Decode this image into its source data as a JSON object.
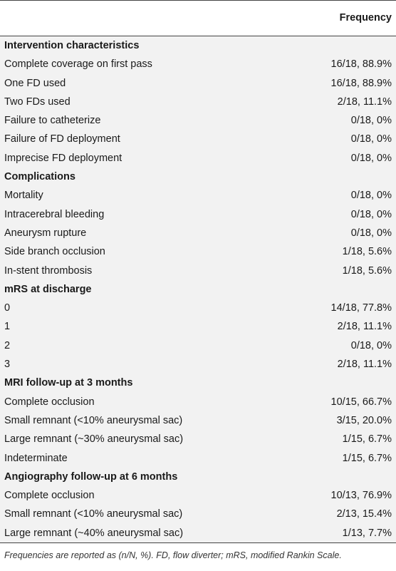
{
  "header": {
    "label_col": "",
    "value_col": "Frequency"
  },
  "rows": [
    {
      "type": "section",
      "label": "Intervention characteristics",
      "value": ""
    },
    {
      "type": "item",
      "label": "Complete coverage on first pass",
      "value": "16/18, 88.9%"
    },
    {
      "type": "item",
      "label": "One FD used",
      "value": "16/18, 88.9%"
    },
    {
      "type": "item",
      "label": "Two FDs used",
      "value": "2/18, 11.1%"
    },
    {
      "type": "item",
      "label": "Failure to catheterize",
      "value": "0/18, 0%"
    },
    {
      "type": "item",
      "label": "Failure of FD deployment",
      "value": "0/18, 0%"
    },
    {
      "type": "item",
      "label": "Imprecise FD deployment",
      "value": "0/18, 0%"
    },
    {
      "type": "section",
      "label": "Complications",
      "value": ""
    },
    {
      "type": "item",
      "label": "Mortality",
      "value": "0/18, 0%"
    },
    {
      "type": "item",
      "label": "Intracerebral bleeding",
      "value": "0/18, 0%"
    },
    {
      "type": "item",
      "label": "Aneurysm rupture",
      "value": "0/18, 0%"
    },
    {
      "type": "item",
      "label": "Side branch occlusion",
      "value": "1/18, 5.6%"
    },
    {
      "type": "item",
      "label": "In-stent thrombosis",
      "value": "1/18, 5.6%"
    },
    {
      "type": "section",
      "label": "mRS at discharge",
      "value": ""
    },
    {
      "type": "item",
      "label": "0",
      "value": "14/18, 77.8%"
    },
    {
      "type": "item",
      "label": "1",
      "value": "2/18, 11.1%"
    },
    {
      "type": "item",
      "label": "2",
      "value": "0/18, 0%"
    },
    {
      "type": "item",
      "label": "3",
      "value": "2/18, 11.1%"
    },
    {
      "type": "section",
      "label": "MRI follow-up at 3 months",
      "value": ""
    },
    {
      "type": "item",
      "label": "Complete occlusion",
      "value": "10/15, 66.7%"
    },
    {
      "type": "item",
      "label": "Small remnant (<10% aneurysmal sac)",
      "value": "3/15, 20.0%"
    },
    {
      "type": "item",
      "label": "Large remnant (~30% aneurysmal sac)",
      "value": "1/15, 6.7%"
    },
    {
      "type": "item",
      "label": "Indeterminate",
      "value": "1/15, 6.7%"
    },
    {
      "type": "section",
      "label": "Angiography follow-up at 6 months",
      "value": ""
    },
    {
      "type": "item",
      "label": "Complete occlusion",
      "value": "10/13, 76.9%"
    },
    {
      "type": "item",
      "label": "Small remnant (<10% aneurysmal sac)",
      "value": "2/13, 15.4%"
    },
    {
      "type": "item",
      "label": "Large remnant (~40% aneurysmal sac)",
      "value": "1/13, 7.7%"
    }
  ],
  "footnote": "Frequencies are reported as (n/N, %). FD, flow diverter; mRS, modified Rankin Scale."
}
